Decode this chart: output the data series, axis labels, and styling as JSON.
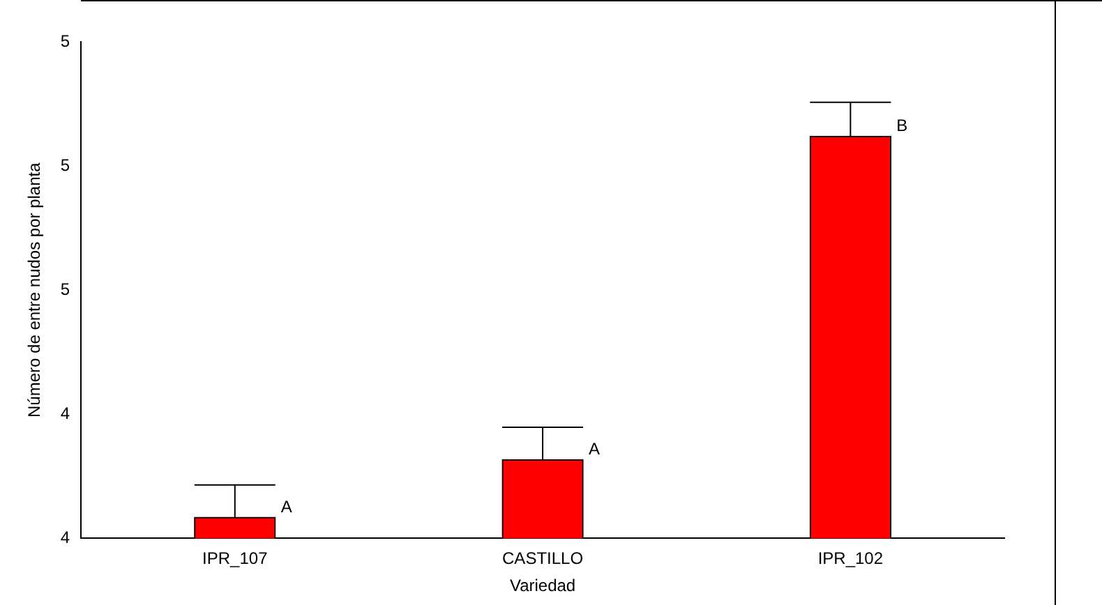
{
  "chart_data": {
    "type": "bar",
    "xlabel": "Variedad",
    "ylabel": "Número de entre nudos por planta",
    "categories": [
      "IPR_107",
      "CASTILLO",
      "IPR_102"
    ],
    "values": [
      3.868,
      4.054,
      5.096
    ],
    "errors": [
      [
        3.868,
        3.972
      ],
      [
        4.054,
        4.158
      ],
      [
        5.096,
        5.205
      ]
    ],
    "color": "#ff0000",
    "ylim": [
      3.8,
      5.4
    ],
    "yticks": [
      {
        "value": 3.8,
        "label": "4"
      },
      {
        "value": 4.2,
        "label": "4"
      },
      {
        "value": 4.6,
        "label": "5"
      },
      {
        "value": 5.0,
        "label": "5"
      },
      {
        "value": 5.4,
        "label": "5"
      }
    ],
    "annotations": [
      {
        "text": "A",
        "x": "IPR_107",
        "y": 3.868
      },
      {
        "text": "A",
        "x": "CASTILLO",
        "y": 4.054
      },
      {
        "text": "B",
        "x": "IPR_102",
        "y": 5.096
      }
    ],
    "grid": false,
    "legend": false
  }
}
